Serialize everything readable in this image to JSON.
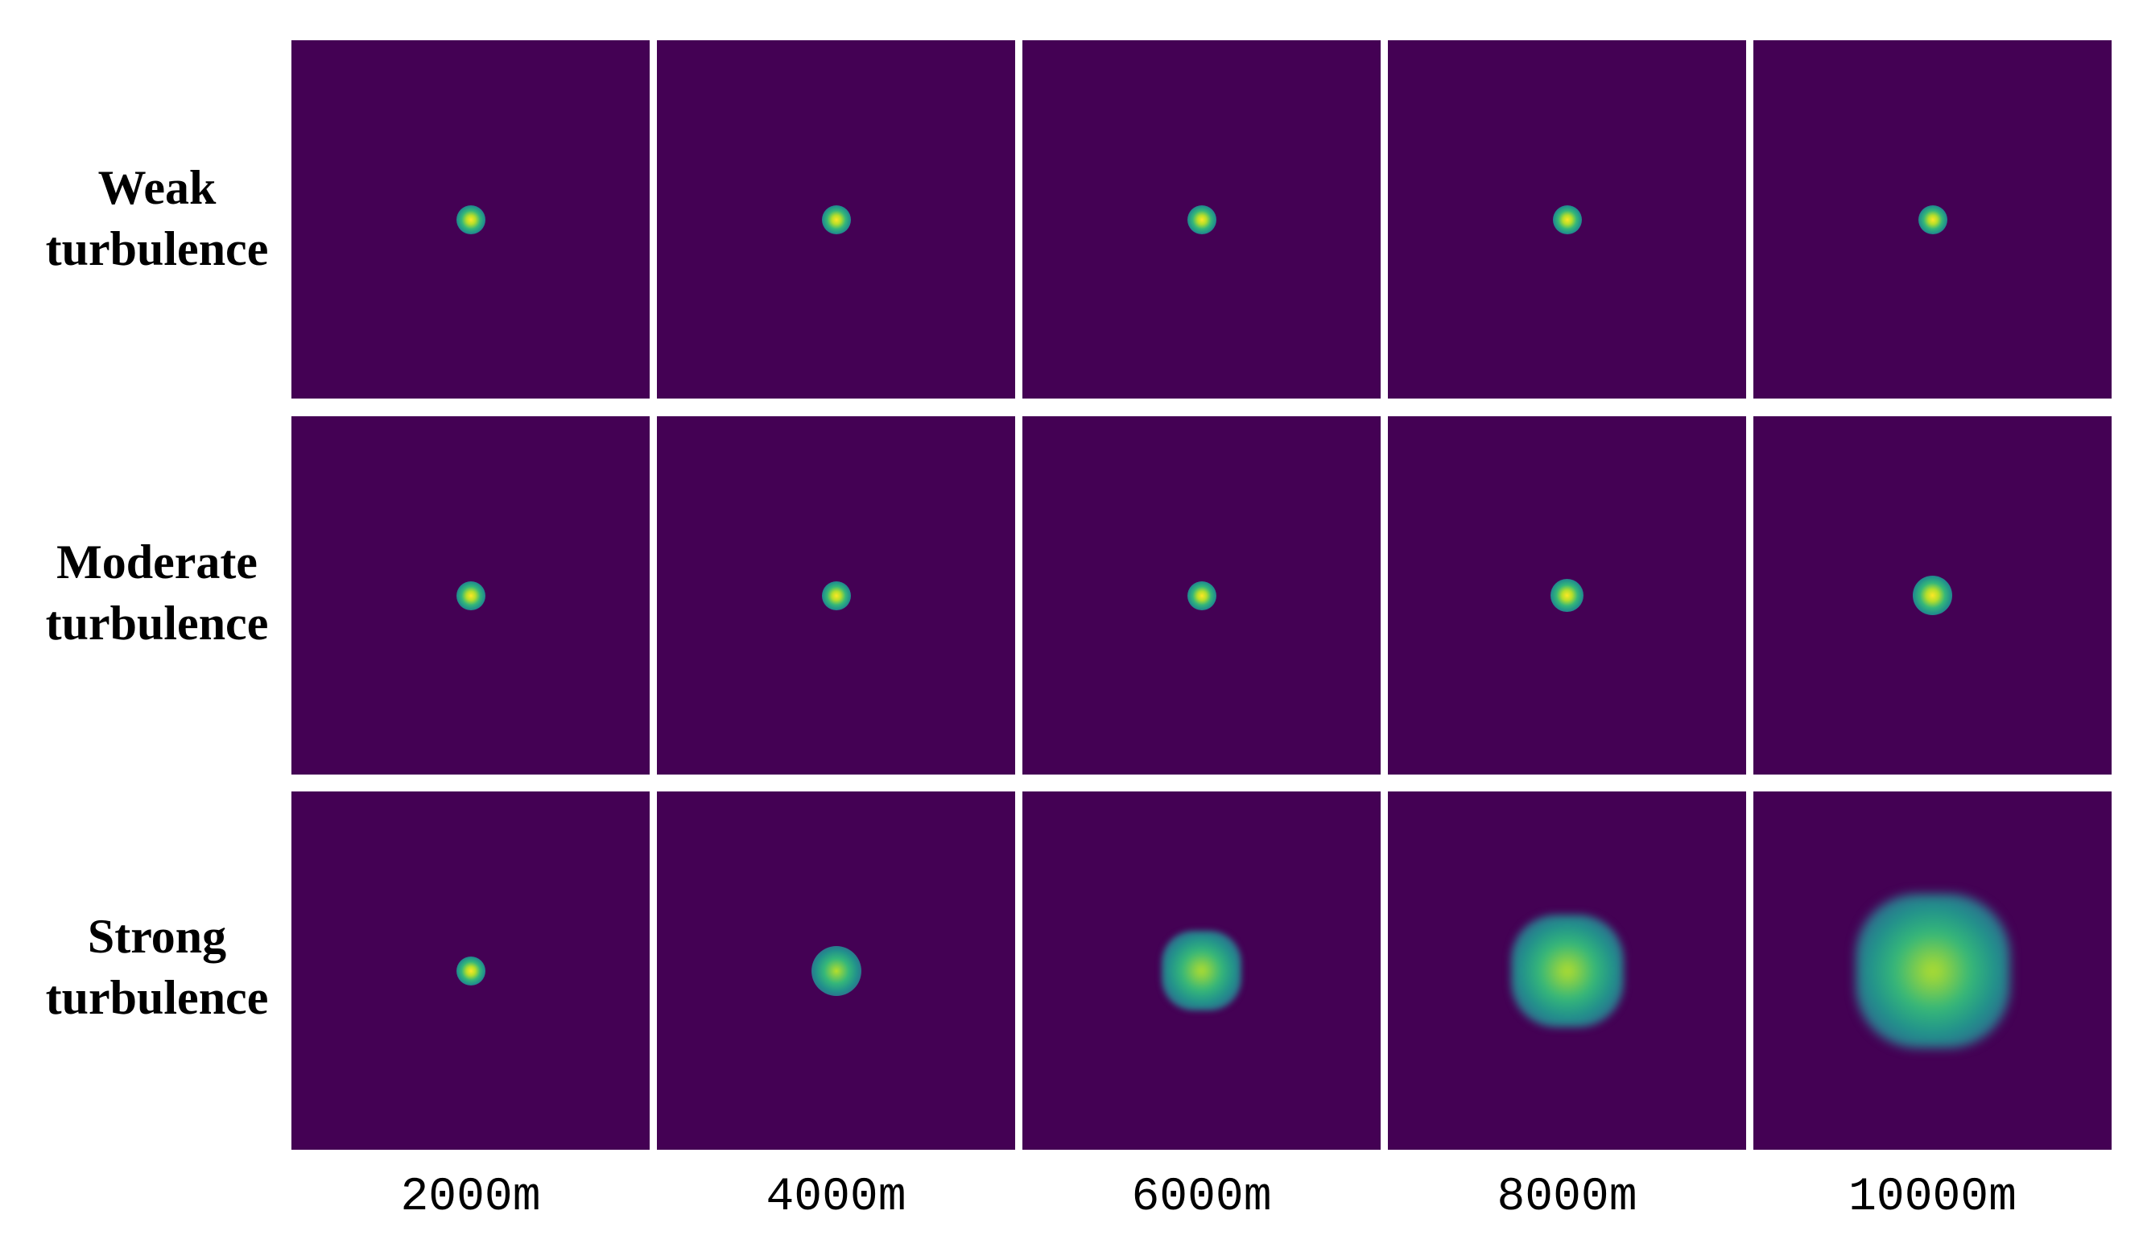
{
  "rows": [
    {
      "label_line1": "Weak",
      "label_line2": "turbulence",
      "spread": [
        0,
        0,
        0,
        0,
        0
      ]
    },
    {
      "label_line1": "Moderate",
      "label_line2": "turbulence",
      "spread": [
        0,
        0,
        0,
        0.05,
        0.12
      ]
    },
    {
      "label_line1": "Strong",
      "label_line2": "turbulence",
      "spread": [
        0,
        0.25,
        0.6,
        1.0,
        1.5
      ]
    }
  ],
  "columns": [
    "2000m",
    "4000m",
    "6000m",
    "8000m",
    "10000m"
  ],
  "colors": {
    "background": "#440154",
    "peak": "#fde725",
    "core": "#b5de2b",
    "mid": "#35b779",
    "edge": "#21918c",
    "fade": "#31688e"
  }
}
